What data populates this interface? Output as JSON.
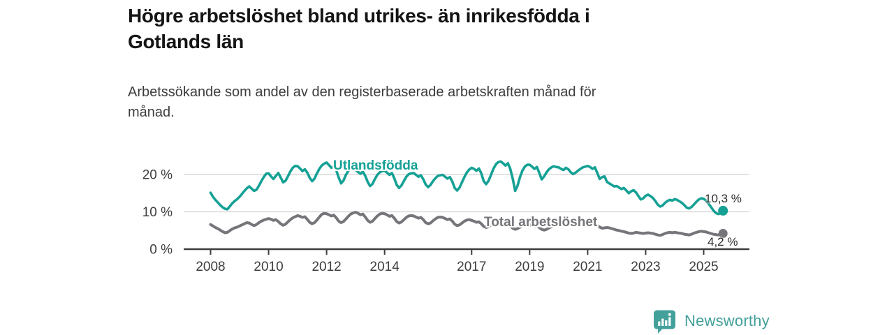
{
  "header": {
    "title_lines": [
      "Högre arbetslöshet bland utrikes- än inrikesfödda i",
      "Gotlands län"
    ],
    "subtitle_lines": [
      "Arbetssökande som andel av den registerbaserade arbetskraften månad för",
      "månad."
    ]
  },
  "chart_data": {
    "type": "line",
    "title": "Högre arbetslöshet bland utrikes- än inrikesfödda i Gotlands län",
    "subtitle": "Arbetssökande som andel av den registerbaserade arbetskraften månad för månad.",
    "x_start_year": 2008,
    "x_step_months": 1,
    "x_ticks": [
      2008,
      2010,
      2012,
      2014,
      2017,
      2019,
      2021,
      2023,
      2025
    ],
    "y_ticks": [
      {
        "value": 0,
        "label": "0 %"
      },
      {
        "value": 10,
        "label": "10 %"
      },
      {
        "value": 20,
        "label": "20 %"
      }
    ],
    "ylim": [
      0,
      25
    ],
    "grid": "horizontal-light",
    "legend": "inline-labels",
    "series": [
      {
        "name": "Utlandsfödda",
        "color": "#16a195",
        "end_label": "10,3 %",
        "end_value": 10.3,
        "values": [
          15.1,
          14.0,
          13.2,
          12.5,
          11.8,
          11.2,
          10.8,
          10.7,
          11.5,
          12.3,
          12.9,
          13.4,
          14.0,
          14.8,
          15.6,
          16.3,
          16.8,
          16.2,
          15.6,
          15.9,
          17.0,
          18.2,
          19.3,
          20.2,
          20.3,
          19.5,
          18.8,
          19.6,
          20.4,
          19.2,
          17.9,
          18.3,
          19.5,
          20.8,
          21.8,
          22.3,
          22.2,
          21.6,
          20.9,
          21.4,
          20.5,
          19.1,
          18.2,
          18.9,
          20.3,
          21.5,
          22.4,
          22.9,
          23.2,
          22.5,
          21.8,
          22.3,
          21.1,
          19.2,
          17.6,
          18.4,
          19.9,
          21.0,
          21.6,
          21.4,
          21.2,
          20.7,
          20.2,
          20.8,
          19.6,
          18.0,
          16.9,
          17.5,
          18.8,
          19.9,
          20.6,
          20.9,
          21.0,
          20.5,
          19.9,
          20.4,
          19.0,
          17.2,
          16.4,
          17.1,
          18.3,
          19.4,
          20.1,
          20.3,
          20.4,
          19.9,
          19.4,
          19.8,
          18.7,
          17.3,
          16.6,
          17.2,
          18.2,
          19.0,
          19.6,
          19.8,
          19.9,
          19.4,
          18.9,
          19.3,
          18.1,
          16.4,
          15.7,
          16.5,
          17.9,
          19.3,
          20.5,
          21.3,
          21.8,
          21.5,
          21.0,
          21.6,
          20.3,
          18.2,
          17.4,
          18.3,
          19.9,
          21.5,
          22.7,
          23.3,
          23.5,
          23.0,
          22.4,
          23.0,
          21.5,
          18.9,
          15.6,
          17.0,
          19.3,
          21.0,
          22.1,
          22.6,
          22.6,
          22.1,
          21.5,
          22.0,
          20.4,
          18.7,
          19.5,
          20.6,
          21.4,
          21.9,
          22.2,
          22.0,
          21.9,
          21.5,
          21.2,
          21.8,
          21.4,
          20.6,
          20.1,
          20.5,
          21.0,
          21.5,
          21.9,
          22.1,
          22.3,
          22.0,
          21.5,
          21.9,
          20.4,
          18.8,
          19.3,
          19.5,
          18.0,
          17.6,
          17.2,
          16.8,
          16.9,
          16.5,
          16.1,
          16.4,
          15.7,
          15.0,
          15.5,
          15.8,
          15.2,
          14.2,
          13.3,
          13.6,
          14.3,
          14.6,
          14.2,
          13.7,
          12.9,
          11.9,
          11.4,
          11.7,
          12.4,
          12.9,
          13.2,
          13.0,
          13.4,
          13.2,
          12.8,
          12.4,
          11.8,
          11.1,
          10.9,
          11.3,
          12.0,
          12.7,
          13.3,
          13.6,
          13.5,
          13.0,
          12.2,
          11.3,
          10.4,
          9.7,
          9.4,
          9.6,
          10.3
        ]
      },
      {
        "name": "Total arbetslöshet",
        "color": "#75757a",
        "end_label": "4,2 %",
        "end_value": 4.2,
        "values": [
          6.6,
          6.2,
          5.8,
          5.5,
          5.1,
          4.7,
          4.4,
          4.5,
          5.0,
          5.4,
          5.7,
          5.9,
          6.2,
          6.5,
          6.8,
          7.1,
          7.0,
          6.6,
          6.3,
          6.6,
          7.1,
          7.5,
          7.8,
          8.0,
          8.2,
          8.0,
          7.7,
          7.9,
          7.4,
          6.8,
          6.4,
          6.7,
          7.3,
          7.9,
          8.4,
          8.7,
          9.0,
          8.8,
          8.5,
          8.7,
          8.0,
          7.2,
          6.8,
          7.1,
          7.8,
          8.6,
          9.3,
          9.6,
          9.5,
          9.2,
          8.9,
          9.1,
          8.4,
          7.5,
          7.1,
          7.4,
          8.1,
          8.8,
          9.4,
          9.7,
          9.9,
          9.6,
          9.2,
          9.4,
          8.6,
          7.7,
          7.2,
          7.5,
          8.2,
          8.9,
          9.4,
          9.6,
          9.5,
          9.2,
          8.8,
          9.0,
          8.3,
          7.4,
          7.0,
          7.3,
          7.9,
          8.5,
          8.9,
          9.0,
          8.9,
          8.6,
          8.3,
          8.5,
          7.9,
          7.1,
          6.8,
          7.0,
          7.6,
          8.1,
          8.5,
          8.6,
          8.5,
          8.2,
          7.9,
          8.1,
          7.5,
          6.7,
          6.3,
          6.5,
          7.0,
          7.5,
          7.8,
          7.9,
          7.7,
          7.5,
          7.2,
          7.3,
          6.8,
          6.1,
          5.8,
          6.0,
          6.4,
          6.8,
          7.1,
          7.2,
          7.1,
          6.9,
          6.6,
          6.7,
          6.2,
          5.6,
          5.3,
          5.5,
          5.9,
          6.2,
          6.5,
          6.6,
          6.5,
          6.3,
          6.1,
          6.2,
          5.8,
          5.3,
          5.1,
          5.3,
          5.7,
          6.0,
          6.3,
          6.4,
          6.6,
          6.6,
          6.8,
          7.3,
          7.5,
          7.4,
          7.2,
          7.3,
          7.4,
          7.3,
          7.2,
          7.1,
          7.0,
          6.9,
          6.7,
          6.6,
          6.3,
          5.9,
          5.6,
          5.7,
          5.8,
          5.7,
          5.5,
          5.3,
          5.1,
          5.0,
          4.8,
          4.7,
          4.5,
          4.3,
          4.2,
          4.3,
          4.5,
          4.4,
          4.3,
          4.2,
          4.3,
          4.4,
          4.3,
          4.2,
          4.0,
          3.8,
          3.7,
          3.9,
          4.2,
          4.4,
          4.5,
          4.4,
          4.5,
          4.4,
          4.3,
          4.2,
          4.0,
          3.9,
          3.8,
          4.0,
          4.3,
          4.5,
          4.7,
          4.8,
          4.7,
          4.6,
          4.4,
          4.2,
          4.0,
          3.9,
          3.8,
          4.0,
          4.2
        ]
      }
    ],
    "axis_color": "#3d3d3d",
    "grid_color": "#d2d2d2",
    "tick_label_color": "#3d3d3d"
  },
  "footer": {
    "brand": "Newsworthy",
    "brand_color": "#44a09a",
    "logo_icon": "bar-chart-speech-bubble-icon"
  }
}
